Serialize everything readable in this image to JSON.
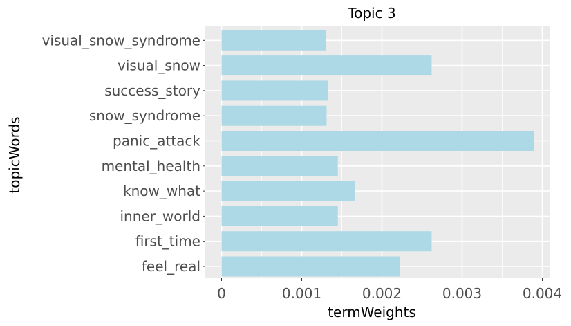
{
  "chart_data": {
    "type": "bar",
    "orientation": "horizontal",
    "title": "Topic 3",
    "xlabel": "termWeights",
    "ylabel": "topicWords",
    "categories": [
      "feel_real",
      "first_time",
      "inner_world",
      "know_what",
      "mental_health",
      "panic_attack",
      "snow_syndrome",
      "success_story",
      "visual_snow",
      "visual_snow_syndrome"
    ],
    "values": [
      0.00222,
      0.00262,
      0.00145,
      0.00166,
      0.00145,
      0.0039,
      0.00131,
      0.00133,
      0.00262,
      0.0013
    ],
    "xlim": [
      -0.0001,
      0.0041
    ],
    "xticks": [
      0,
      0.001,
      0.002,
      0.003,
      0.004
    ],
    "xtick_labels": [
      "0",
      "0.001",
      "0.002",
      "0.003",
      "0.004"
    ],
    "bar_color": "#add8e6",
    "panel_color": "#ebebeb",
    "grid_color": "#ffffff",
    "grid": true,
    "legend": "none"
  }
}
